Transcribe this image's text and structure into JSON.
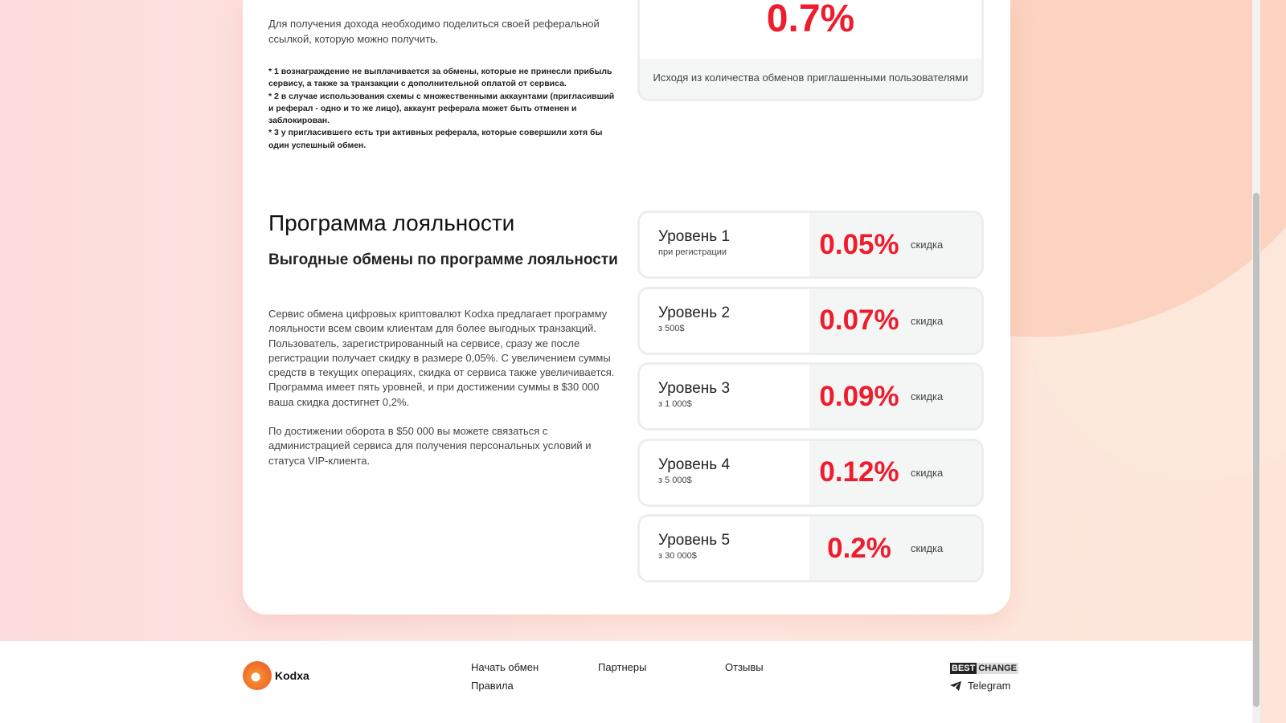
{
  "referral": {
    "text": "Для получения дохода необходимо поделиться своей реферальной ссылкой, которую можно получить.",
    "notes": [
      "* 1 вознаграждение не выплачивается за обмены, которые не принесли прибыль сервису, а также за транзакции с дополнительной оплатой от сервиса.",
      "* 2 в случае использования схемы с множественными аккаунтами (пригласивший и реферал - одно и то же лицо), аккаунт реферала может быть отменен и заблокирован.",
      "* 3 у пригласившего есть три активных реферала, которые совершили хотя бы один успешный обмен."
    ],
    "percent": "0.7%",
    "percent_desc": "Исходя из количества обменов приглашенными пользователями"
  },
  "loyalty": {
    "title": "Программа лояльности",
    "subtitle": "Выгодные обмены по программе лояльности",
    "p1": "Сервис обмена цифровых криптовалют Kodxa предлагает программу лояльности всем своим клиентам для более выгодных транзакций. Пользователь, зарегистрированный на сервисе, сразу же после регистрации получает скидку в размере 0,05%. С увеличением суммы средств в текущих операциях, скидка от сервиса также увеличивается. Программа имеет пять уровней, и при достижении суммы в $30 000 ваша скидка достигнет 0,2%.",
    "p2": "По достижении оборота в $50 000 вы можете связаться с администрацией сервиса для получения персональных условий и статуса VIP-клиента.",
    "levels": [
      {
        "name": "Уровень 1",
        "cond": "при регистрации",
        "value": "0.05%",
        "label": "скидка"
      },
      {
        "name": "Уровень 2",
        "cond": "з 500$",
        "value": "0.07%",
        "label": "скидка"
      },
      {
        "name": "Уровень 3",
        "cond": "з 1 000$",
        "value": "0.09%",
        "label": "скидка"
      },
      {
        "name": "Уровень 4",
        "cond": "з 5 000$",
        "value": "0.12%",
        "label": "скидка"
      },
      {
        "name": "Уровень 5",
        "cond": "з 30 000$",
        "value": "0.2%",
        "label": "скидка"
      }
    ]
  },
  "footer": {
    "brand": "Kodxa",
    "links": [
      "Начать обмен",
      "Правила",
      "Партнеры",
      "Отзывы"
    ],
    "bestchange": [
      "BEST",
      "CHANGE"
    ],
    "telegram": "Telegram"
  },
  "colors": {
    "accent": "#ee1c2d"
  }
}
